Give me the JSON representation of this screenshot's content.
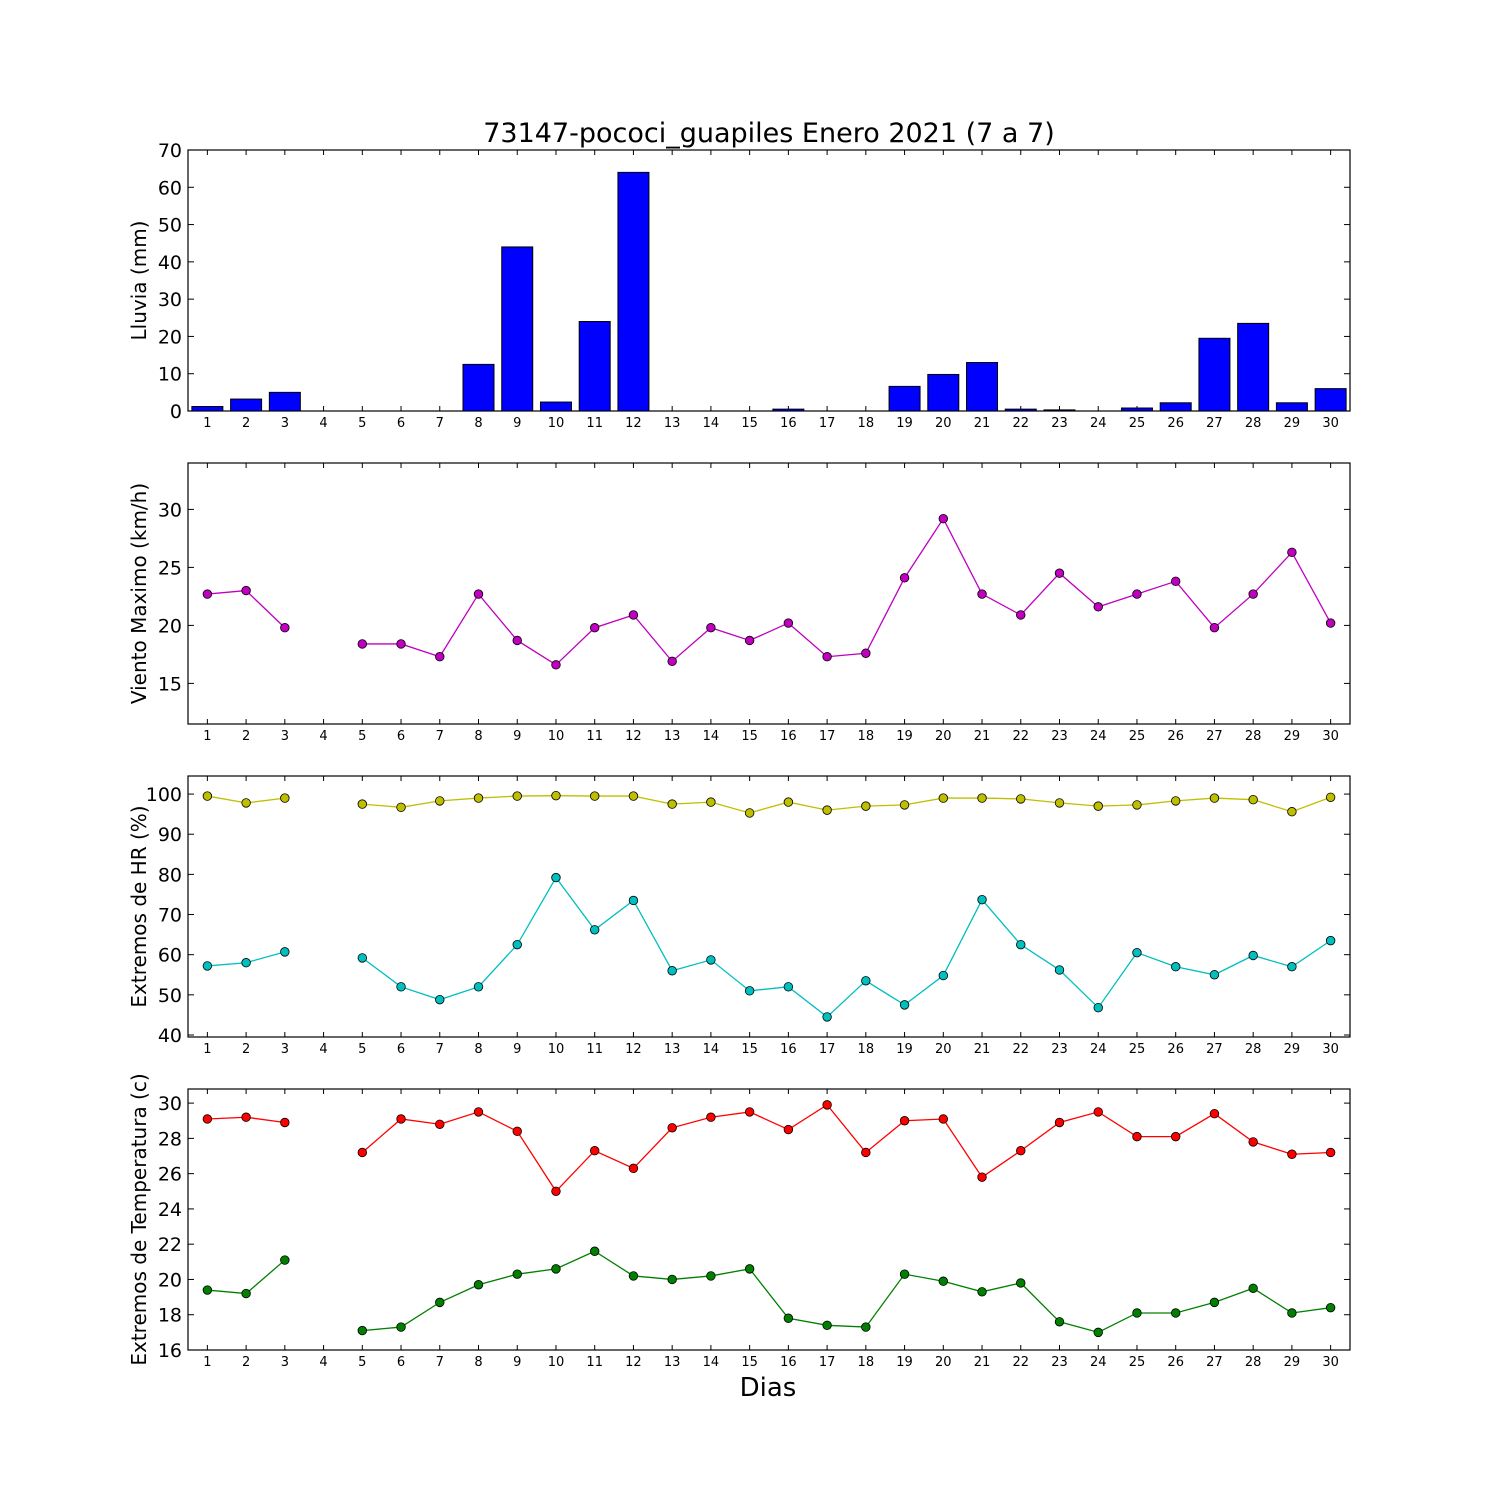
{
  "title": "73147-pococi_guapiles Enero 2021  (7 a 7)",
  "xlabel": "Dias",
  "chart_data": [
    {
      "type": "bar",
      "ylabel": "Lluvia (mm)",
      "ylim": [
        0,
        70
      ],
      "yticks": [
        0,
        10,
        20,
        30,
        40,
        50,
        60,
        70
      ],
      "categories": [
        1,
        2,
        3,
        4,
        5,
        6,
        7,
        8,
        9,
        10,
        11,
        12,
        13,
        14,
        15,
        16,
        17,
        18,
        19,
        20,
        21,
        22,
        23,
        24,
        25,
        26,
        27,
        28,
        29,
        30
      ],
      "series": [
        {
          "color": "#0000ff",
          "values": [
            1.2,
            3.2,
            5.0,
            0,
            0,
            0,
            0,
            12.5,
            44.0,
            2.4,
            24.0,
            64.0,
            0,
            0,
            0,
            0.5,
            0,
            0,
            6.6,
            9.8,
            13.0,
            0.5,
            0.3,
            0,
            0.8,
            2.2,
            19.5,
            23.5,
            2.2,
            6.0
          ]
        }
      ]
    },
    {
      "type": "line",
      "ylabel": "Viento Maximo (km/h)",
      "ylim": [
        11.5,
        34
      ],
      "yticks": [
        15,
        20,
        25,
        30
      ],
      "categories": [
        1,
        2,
        3,
        4,
        5,
        6,
        7,
        8,
        9,
        10,
        11,
        12,
        13,
        14,
        15,
        16,
        17,
        18,
        19,
        20,
        21,
        22,
        23,
        24,
        25,
        26,
        27,
        28,
        29,
        30
      ],
      "series": [
        {
          "color": "#bf00bf",
          "values": [
            22.7,
            23.0,
            19.8,
            null,
            18.4,
            18.4,
            17.3,
            22.7,
            18.7,
            16.6,
            19.8,
            20.9,
            16.9,
            19.8,
            18.7,
            20.2,
            17.3,
            17.6,
            24.1,
            29.2,
            22.7,
            20.9,
            24.5,
            21.6,
            22.7,
            23.8,
            19.8,
            22.7,
            26.3,
            20.2
          ]
        }
      ]
    },
    {
      "type": "line",
      "ylabel": "Extremos de HR (%)",
      "ylim": [
        39.5,
        104.5
      ],
      "yticks": [
        40,
        50,
        60,
        70,
        80,
        90,
        100
      ],
      "categories": [
        1,
        2,
        3,
        4,
        5,
        6,
        7,
        8,
        9,
        10,
        11,
        12,
        13,
        14,
        15,
        16,
        17,
        18,
        19,
        20,
        21,
        22,
        23,
        24,
        25,
        26,
        27,
        28,
        29,
        30
      ],
      "series": [
        {
          "color": "#bfbf00",
          "values": [
            99.5,
            97.8,
            99.0,
            null,
            97.5,
            96.7,
            98.3,
            99.0,
            99.5,
            99.6,
            99.5,
            99.5,
            97.5,
            98.0,
            95.3,
            98.0,
            96.0,
            97.0,
            97.3,
            99.0,
            99.0,
            98.8,
            97.8,
            97.0,
            97.3,
            98.3,
            99.0,
            98.6,
            95.6,
            99.2
          ]
        },
        {
          "color": "#00bfbf",
          "values": [
            57.2,
            58.0,
            60.7,
            null,
            59.2,
            52.0,
            48.8,
            52.0,
            62.5,
            79.2,
            66.2,
            73.5,
            56.0,
            58.7,
            51.0,
            52.0,
            44.5,
            53.5,
            47.5,
            54.8,
            73.7,
            62.5,
            56.2,
            46.8,
            60.5,
            57.0,
            55.0,
            59.8,
            57.0,
            63.5
          ]
        }
      ]
    },
    {
      "type": "line",
      "ylabel": "Extremos de Temperatura (c)",
      "ylim": [
        16,
        30.8
      ],
      "yticks": [
        16,
        18,
        20,
        22,
        24,
        26,
        28,
        30
      ],
      "categories": [
        1,
        2,
        3,
        4,
        5,
        6,
        7,
        8,
        9,
        10,
        11,
        12,
        13,
        14,
        15,
        16,
        17,
        18,
        19,
        20,
        21,
        22,
        23,
        24,
        25,
        26,
        27,
        28,
        29,
        30
      ],
      "series": [
        {
          "color": "#ff0000",
          "values": [
            29.1,
            29.2,
            28.9,
            null,
            27.2,
            29.1,
            28.8,
            29.5,
            28.4,
            25.0,
            27.3,
            26.3,
            28.6,
            29.2,
            29.5,
            28.5,
            29.9,
            27.2,
            29.0,
            29.1,
            25.8,
            27.3,
            28.9,
            29.5,
            28.1,
            28.1,
            29.4,
            27.8,
            27.1,
            27.2
          ]
        },
        {
          "color": "#008000",
          "values": [
            19.4,
            19.2,
            21.1,
            null,
            17.1,
            17.3,
            18.7,
            19.7,
            20.3,
            20.6,
            21.6,
            20.2,
            20.0,
            20.2,
            20.6,
            17.8,
            17.4,
            17.3,
            20.3,
            19.9,
            19.3,
            19.8,
            17.6,
            17.0,
            18.1,
            18.1,
            18.7,
            19.5,
            18.1,
            18.4
          ]
        }
      ]
    }
  ]
}
